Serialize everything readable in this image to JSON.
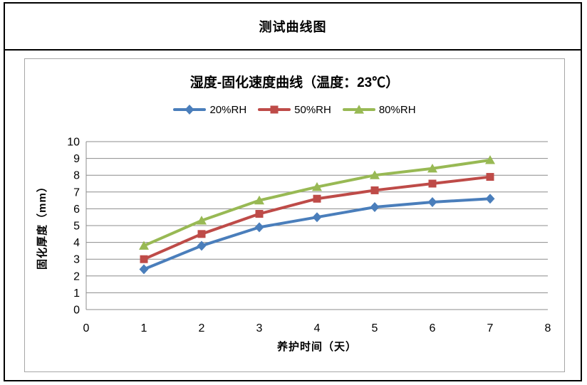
{
  "window": {
    "title": "测试曲线图"
  },
  "chart": {
    "title": "湿度-固化速度曲线（温度：23℃）",
    "x_axis_title": "养护时间（天）",
    "y_axis_title": "固化厚度（mm）"
  },
  "colors": {
    "series_blue": "#4A7EBB",
    "series_red": "#BE4B48",
    "series_green": "#98B954",
    "gridline": "#8C8C8C",
    "axis_line": "#8C8C8C",
    "frame_border": "#A6A6A6",
    "outer_border": "#000000",
    "text": "#000000"
  },
  "chart_data": {
    "type": "line",
    "title": "湿度-固化速度曲线（温度：23℃）",
    "xlabel": "养护时间（天）",
    "ylabel": "固化厚度（mm）",
    "x": [
      1,
      2,
      3,
      4,
      5,
      6,
      7
    ],
    "series": [
      {
        "name": "20%RH",
        "marker": "diamond",
        "color": "#4A7EBB",
        "values": [
          2.4,
          3.8,
          4.9,
          5.5,
          6.1,
          6.4,
          6.6
        ]
      },
      {
        "name": "50%RH",
        "marker": "square",
        "color": "#BE4B48",
        "values": [
          3.0,
          4.5,
          5.7,
          6.6,
          7.1,
          7.5,
          7.9
        ]
      },
      {
        "name": "80%RH",
        "marker": "triangle",
        "color": "#98B954",
        "values": [
          3.8,
          5.3,
          6.5,
          7.3,
          8.0,
          8.4,
          8.9
        ]
      }
    ],
    "xlim": [
      0,
      8
    ],
    "ylim": [
      0,
      10
    ],
    "x_ticks": [
      0,
      1,
      2,
      3,
      4,
      5,
      6,
      7,
      8
    ],
    "y_ticks": [
      0,
      1,
      2,
      3,
      4,
      5,
      6,
      7,
      8,
      9,
      10
    ],
    "grid": "horizontal-only",
    "legend_position": "top-center"
  }
}
